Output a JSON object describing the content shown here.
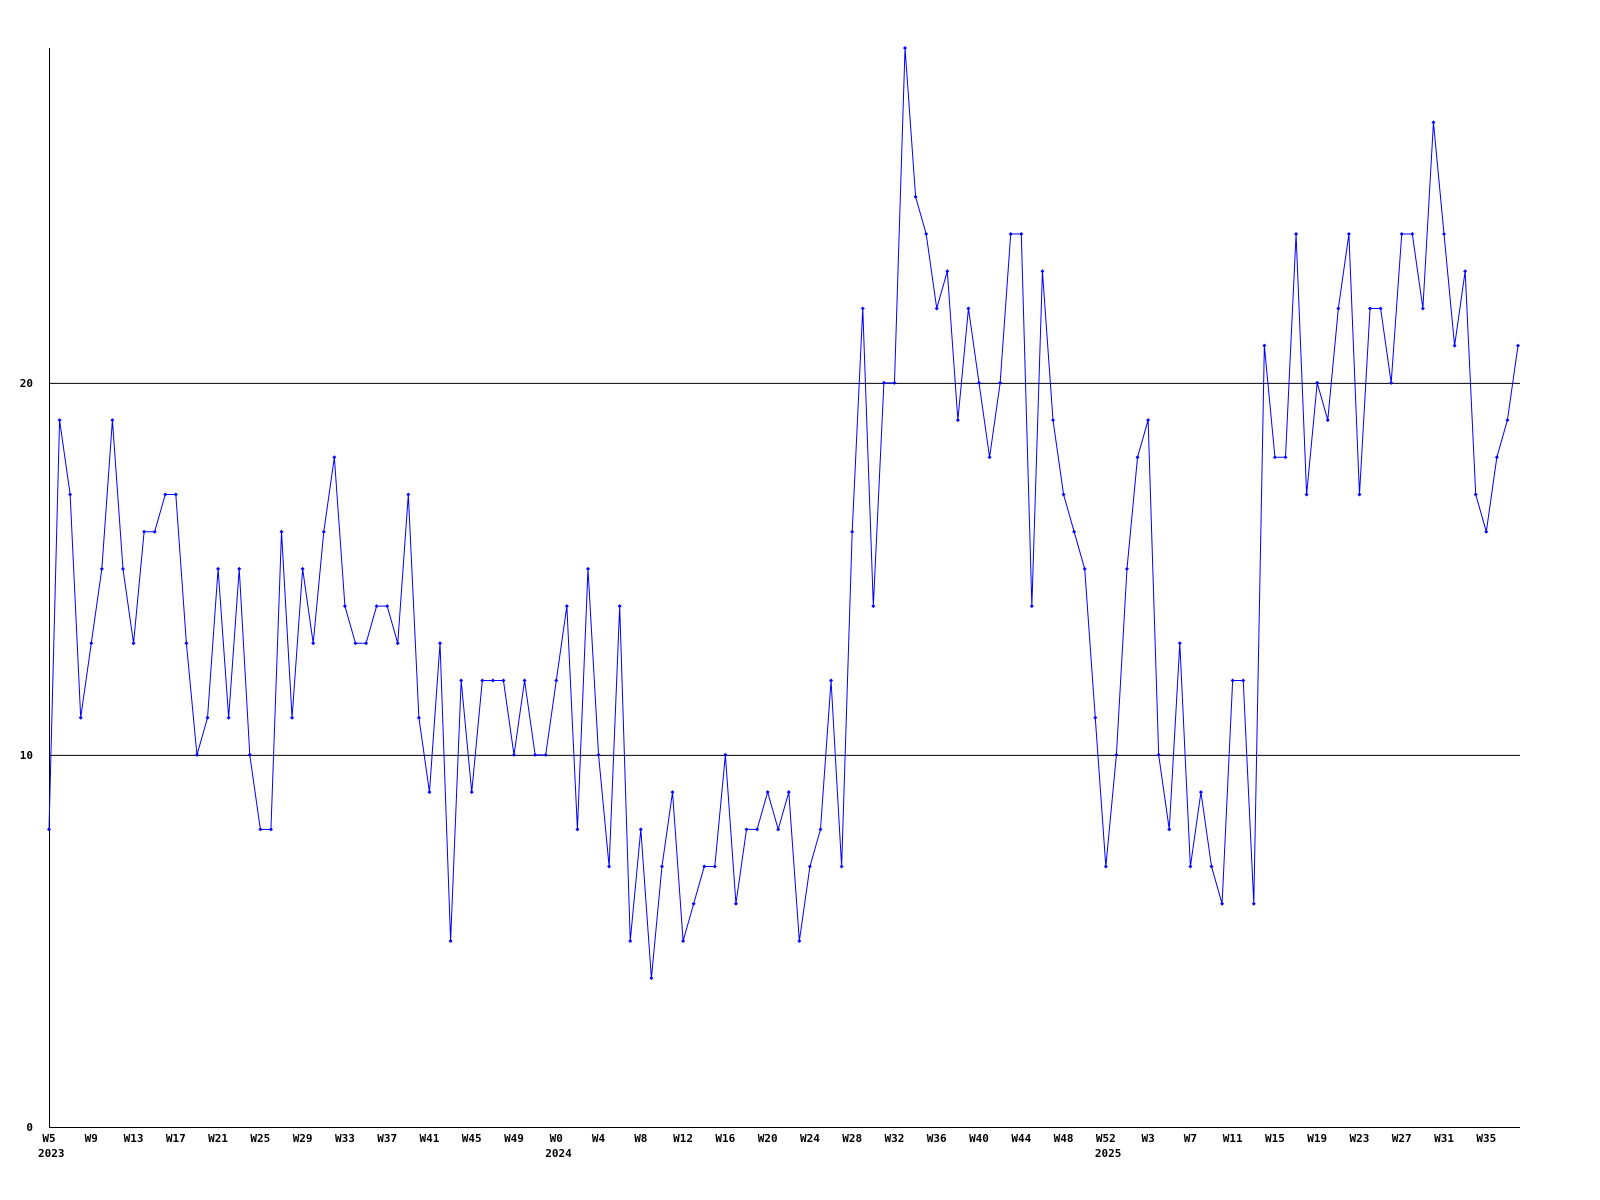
{
  "chart_data": {
    "type": "line",
    "categories": [
      {
        "week": "W5",
        "year": "2023"
      },
      null,
      null,
      null,
      "W9",
      null,
      null,
      null,
      "W13",
      null,
      null,
      null,
      "W17",
      null,
      null,
      null,
      "W21",
      null,
      null,
      null,
      "W25",
      null,
      null,
      null,
      "W29",
      null,
      null,
      null,
      "W33",
      null,
      null,
      null,
      "W37",
      null,
      null,
      null,
      "W41",
      null,
      null,
      null,
      "W45",
      null,
      null,
      null,
      "W49",
      null,
      null,
      null,
      {
        "week": "W0",
        "year": "2024"
      },
      null,
      null,
      null,
      "W4",
      null,
      null,
      null,
      "W8",
      null,
      null,
      null,
      "W12",
      null,
      null,
      null,
      "W16",
      null,
      null,
      null,
      "W20",
      null,
      null,
      null,
      "W24",
      null,
      null,
      null,
      "W28",
      null,
      null,
      null,
      "W32",
      null,
      null,
      null,
      "W36",
      null,
      null,
      null,
      "W40",
      null,
      null,
      null,
      "W44",
      null,
      null,
      null,
      "W48",
      null,
      null,
      null,
      {
        "week": "W52",
        "year": "2025"
      },
      null,
      null,
      null,
      "W3",
      null,
      null,
      null,
      "W7",
      null,
      null,
      null,
      "W11",
      null,
      null,
      null,
      "W15",
      null,
      null,
      null,
      "W19",
      null,
      null,
      null,
      "W23",
      null,
      null,
      null,
      "W27",
      null,
      null,
      null,
      "W31",
      null,
      null,
      null,
      "W35",
      null,
      null,
      null
    ],
    "series": [
      {
        "color": "#0000ff",
        "values": [
          8,
          19,
          17,
          11,
          13,
          15,
          19,
          15,
          13,
          16,
          16,
          17,
          17,
          13,
          10,
          11,
          15,
          11,
          15,
          10,
          8,
          8,
          16,
          11,
          15,
          13,
          16,
          18,
          14,
          13,
          13,
          14,
          14,
          13,
          17,
          11,
          9,
          13,
          5,
          12,
          9,
          12,
          12,
          12,
          10,
          12,
          10,
          10,
          12,
          14,
          8,
          15,
          10,
          7,
          14,
          5,
          8,
          4,
          7,
          9,
          5,
          6,
          7,
          7,
          10,
          6,
          8,
          8,
          9,
          8,
          9,
          5,
          7,
          8,
          12,
          7,
          16,
          22,
          14,
          20,
          20,
          29,
          25,
          24,
          22,
          23,
          19,
          22,
          20,
          18,
          20,
          24,
          24,
          14,
          23,
          19,
          17,
          16,
          15,
          11,
          7,
          10,
          15,
          18,
          19,
          10,
          8,
          13,
          7,
          9,
          7,
          6,
          12,
          12,
          6,
          21,
          18,
          18,
          24,
          17,
          20,
          19,
          22,
          24,
          17,
          22,
          22,
          20,
          24,
          24,
          22,
          27,
          24,
          21,
          23,
          17,
          16,
          18,
          19,
          21
        ]
      }
    ],
    "ylim": [
      0,
      29
    ],
    "yticks": [
      0,
      10,
      20
    ],
    "grid": true
  }
}
